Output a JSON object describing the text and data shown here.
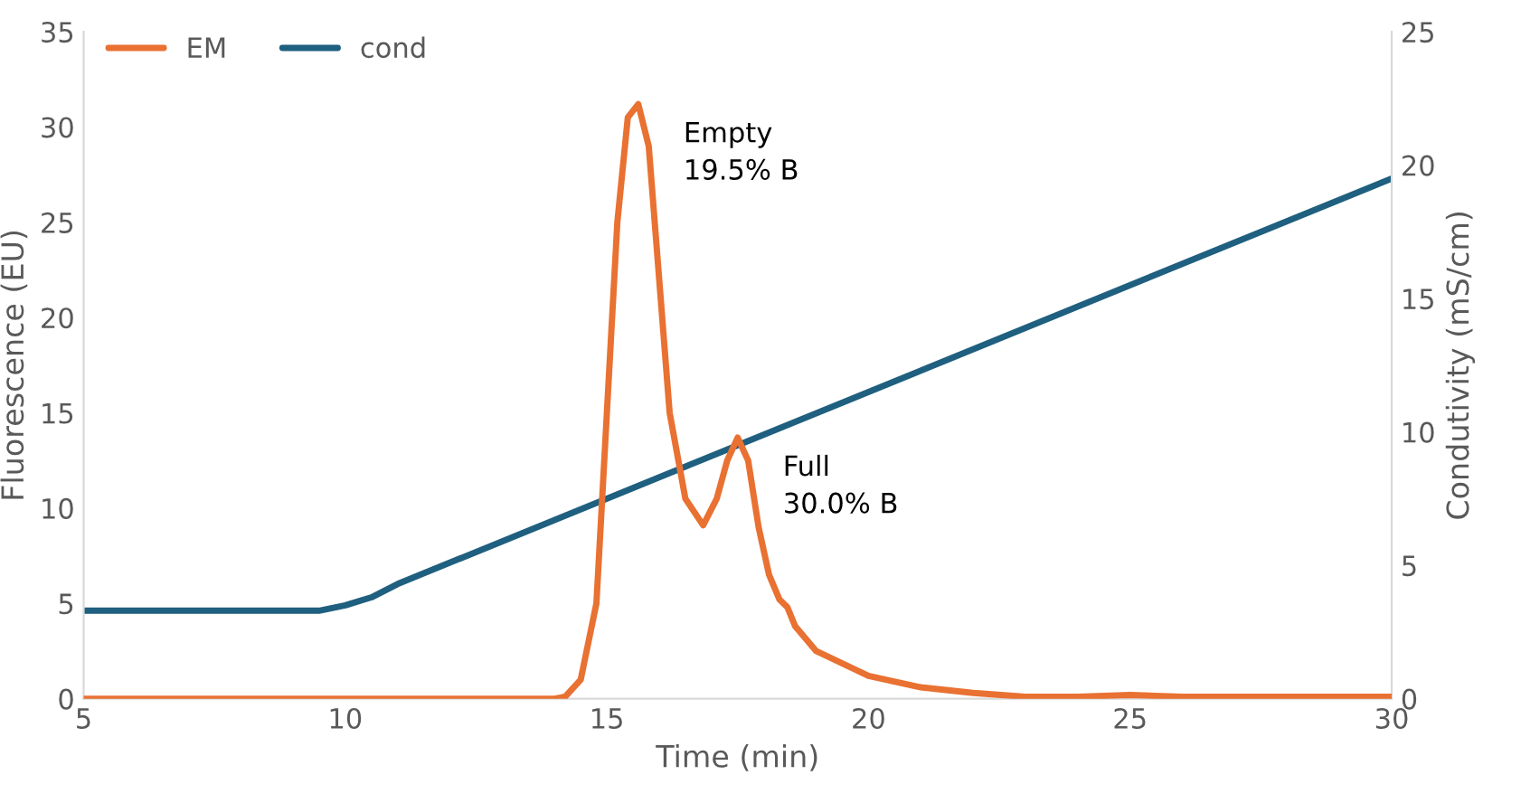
{
  "chart_data": {
    "type": "line",
    "xlabel": "Time (min)",
    "ylabel": "Fluorescence (EU)",
    "y2label": "Condutivity (mS/cm)",
    "xlim": [
      5,
      30
    ],
    "xticks": [
      5,
      10,
      15,
      20,
      25,
      30
    ],
    "ylim": [
      0,
      35
    ],
    "yticks": [
      0,
      5,
      10,
      15,
      20,
      25,
      30,
      35
    ],
    "y2lim": [
      0,
      25
    ],
    "y2ticks": [
      0,
      5,
      10,
      15,
      20,
      25
    ],
    "legend": "top left",
    "grid": false,
    "series": [
      {
        "name": "EM",
        "color": "#e97132",
        "x": [
          5,
          10,
          14,
          14.2,
          14.5,
          14.8,
          15.0,
          15.2,
          15.4,
          15.6,
          15.8,
          16.0,
          16.2,
          16.5,
          16.84,
          17.1,
          17.3,
          17.5,
          17.7,
          17.9,
          18.1,
          18.3,
          18.45,
          18.6,
          19,
          20,
          21,
          22,
          23,
          24,
          25,
          26,
          30
        ],
        "values": [
          0,
          0,
          0,
          0.1,
          1,
          5,
          15,
          25,
          30.5,
          31.2,
          29,
          22,
          15,
          10.5,
          9.1,
          10.5,
          12.5,
          13.7,
          12.5,
          9,
          6.5,
          5.2,
          4.8,
          3.8,
          2.5,
          1.2,
          0.6,
          0.3,
          0.1,
          0.1,
          0.2,
          0.1,
          0.1
        ]
      },
      {
        "name": "cond",
        "color": "#1f5f7f",
        "axis": "y2",
        "x": [
          5,
          9.5,
          10,
          10.5,
          11,
          30
        ],
        "values": [
          3.3,
          3.3,
          3.5,
          3.8,
          4.3,
          19.5
        ]
      }
    ],
    "annotations": [
      {
        "text": "Empty\n19.5% B",
        "x": 15.6,
        "y": 31.2
      },
      {
        "text": "Full\n30.0% B",
        "x": 17.5,
        "y": 13.7
      }
    ]
  }
}
